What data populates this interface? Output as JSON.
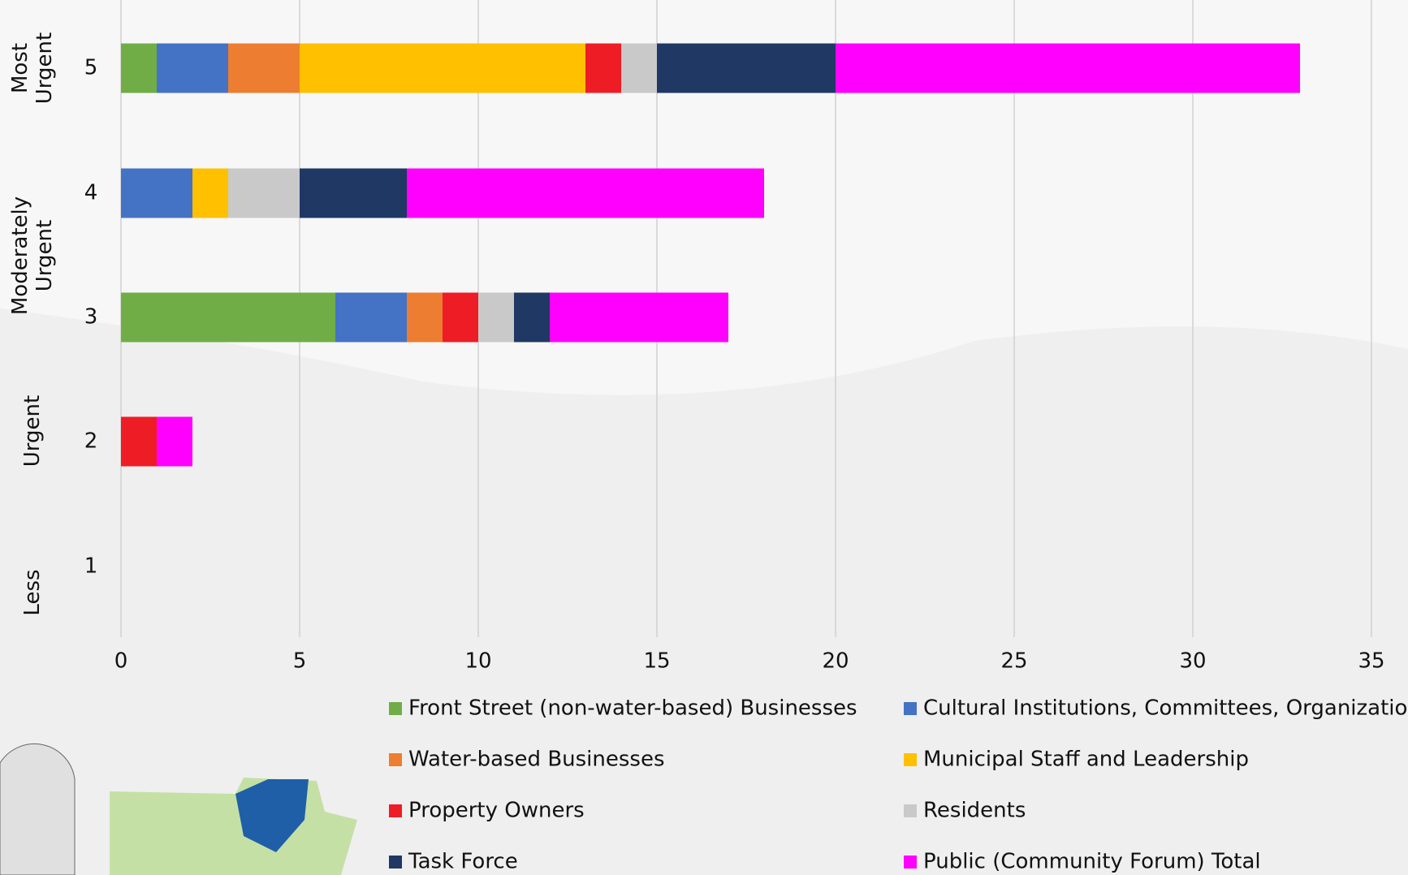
{
  "chart_data": {
    "type": "stacked-barh",
    "categories": [
      "5",
      "4",
      "3",
      "2",
      "1"
    ],
    "category_groups": [
      {
        "lines": [
          "Most",
          "Urgent"
        ]
      },
      {
        "lines": [
          "Moderately",
          "Urgent"
        ]
      },
      {
        "lines": [
          "Urgent"
        ]
      },
      {
        "lines": [
          "Less"
        ]
      }
    ],
    "series": [
      {
        "name": "Front Street (non-water-based) Businesses",
        "color": "#70ad47",
        "values": [
          1,
          0,
          6,
          0,
          0
        ]
      },
      {
        "name": "Cultural Institutions, Committees, Organizations",
        "color": "#4472c4",
        "values": [
          2,
          2,
          2,
          0,
          0
        ]
      },
      {
        "name": "Water-based Businesses",
        "color": "#ed7d31",
        "values": [
          2,
          0,
          1,
          0,
          0
        ]
      },
      {
        "name": "Municipal Staff and Leadership",
        "color": "#ffc000",
        "values": [
          8,
          1,
          0,
          0,
          0
        ]
      },
      {
        "name": "Property Owners",
        "color": "#ee1c25",
        "values": [
          1,
          0,
          1,
          1,
          0
        ]
      },
      {
        "name": "Residents",
        "color": "#c9c9c9",
        "values": [
          1,
          2,
          1,
          0,
          0
        ]
      },
      {
        "name": "Task Force",
        "color": "#1f3864",
        "values": [
          5,
          3,
          1,
          0,
          0
        ]
      },
      {
        "name": "Public (Community Forum) Total",
        "color": "#ff00ff",
        "values": [
          13,
          10,
          5,
          1,
          0
        ]
      }
    ],
    "xlim": [
      0,
      35
    ],
    "xticks": [
      0,
      5,
      10,
      15,
      20,
      25,
      30,
      35
    ],
    "grid": true,
    "legend": "bottom"
  }
}
